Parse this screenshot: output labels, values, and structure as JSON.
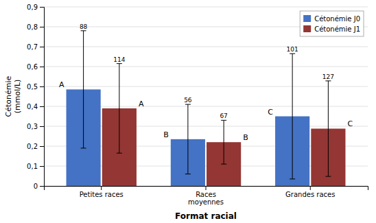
{
  "chart_data": {
    "type": "bar",
    "categories": [
      "Petites races",
      "Races\nmoyennes",
      "Grandes races"
    ],
    "series": [
      {
        "name": "Cétonémie J0",
        "color": "#4472C4",
        "values": [
          0.485,
          0.235,
          0.35
        ],
        "errors": [
          0.295,
          0.175,
          0.315
        ],
        "error_labels": [
          "88",
          "56",
          "101"
        ],
        "sig_labels": [
          "A",
          "B",
          "C"
        ]
      },
      {
        "name": "Cétonémie J1",
        "color": "#943634",
        "values": [
          0.39,
          0.22,
          0.288
        ],
        "errors": [
          0.225,
          0.11,
          0.24
        ],
        "error_labels": [
          "114",
          "67",
          "127"
        ],
        "sig_labels": [
          "A",
          "B",
          "C"
        ]
      }
    ],
    "xlabel": "Format racial",
    "ylabel": "Cétonémie\n(mmol/L)",
    "ylim": [
      0,
      0.9
    ],
    "yticks": [
      0,
      {
        "value": 0.1,
        "label": "0,1"
      },
      {
        "value": 0.2,
        "label": "0,2"
      },
      {
        "value": 0.3,
        "label": "0,3"
      },
      {
        "value": 0.4,
        "label": "0,4"
      },
      {
        "value": 0.5,
        "label": "0,5"
      },
      {
        "value": 0.6,
        "label": "0,6"
      },
      {
        "value": 0.7,
        "label": "0,7"
      },
      {
        "value": 0.8,
        "label": "0,8"
      },
      {
        "value": 0.9,
        "label": "0,9"
      }
    ],
    "grid": true,
    "legend": "upper right"
  }
}
